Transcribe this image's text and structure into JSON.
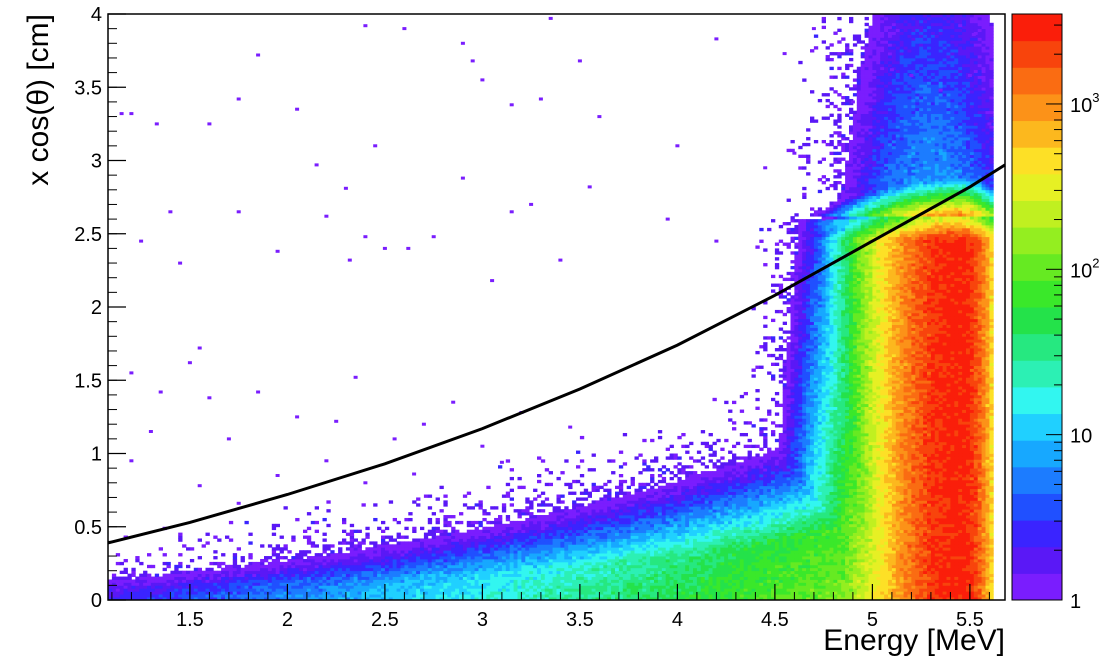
{
  "chart_data": {
    "type": "heatmap",
    "xlabel": "Energy [MeV]",
    "ylabel": "x cos(θ) [cm]",
    "xlim": [
      1.08,
      5.68
    ],
    "ylim": [
      0,
      4
    ],
    "x_ticks": [
      1.5,
      2,
      2.5,
      3,
      3.5,
      4,
      4.5,
      5,
      5.5
    ],
    "x_tick_labels": [
      "1.5",
      "2",
      "2.5",
      "3",
      "3.5",
      "4",
      "4.5",
      "5",
      "5.5"
    ],
    "y_ticks": [
      0,
      0.5,
      1,
      1.5,
      2,
      2.5,
      3,
      3.5,
      4
    ],
    "y_tick_labels": [
      "0",
      "0.5",
      "1",
      "1.5",
      "2",
      "2.5",
      "3",
      "3.5",
      "4"
    ],
    "colorbar": {
      "scale": "log",
      "range": [
        1,
        3500
      ],
      "tick_values": [
        1,
        10,
        100,
        1000
      ],
      "tick_labels": [
        {
          "base": "1",
          "exp": ""
        },
        {
          "base": "10",
          "exp": ""
        },
        {
          "base": "10",
          "exp": "2"
        },
        {
          "base": "10",
          "exp": "3"
        }
      ],
      "colors": [
        "#7a1dfe",
        "#5a18f6",
        "#3a24ff",
        "#2050ff",
        "#1c7cff",
        "#17a8ff",
        "#20d0ff",
        "#32f6f0",
        "#2cf0b4",
        "#26e880",
        "#24e24a",
        "#3ae82a",
        "#66ea22",
        "#94ee20",
        "#c0f020",
        "#e6f024",
        "#fde026",
        "#fcb81e",
        "#fc9218",
        "#fa6c12",
        "#f8440c",
        "#fa1e0a"
      ]
    },
    "cut_line": {
      "x": [
        1.08,
        1.5,
        2.0,
        2.5,
        3.0,
        3.5,
        4.0,
        4.5,
        5.0,
        5.5,
        5.68
      ],
      "y": [
        0.39,
        0.53,
        0.72,
        0.93,
        1.17,
        1.44,
        1.74,
        2.08,
        2.45,
        2.82,
        2.97
      ]
    },
    "density": {
      "band_base_y": 0.05,
      "band_peak_energy": 5.45,
      "band_peak_y_max": 2.62,
      "band_edge_energy": 5.62,
      "peak_counts": 3000
    },
    "outliers": [
      [
        1.15,
        3.32
      ],
      [
        1.2,
        3.32
      ],
      [
        1.33,
        3.25
      ],
      [
        1.6,
        3.25
      ],
      [
        1.75,
        3.42
      ],
      [
        1.85,
        3.72
      ],
      [
        2.4,
        3.92
      ],
      [
        2.6,
        3.9
      ],
      [
        2.9,
        3.8
      ],
      [
        2.95,
        3.68
      ],
      [
        3.0,
        3.55
      ],
      [
        3.15,
        3.38
      ],
      [
        3.3,
        3.42
      ],
      [
        3.35,
        3.97
      ],
      [
        3.6,
        3.3
      ],
      [
        4.2,
        3.83
      ],
      [
        4.55,
        3.73
      ],
      [
        4.7,
        3.9
      ],
      [
        4.9,
        3.4
      ],
      [
        5.1,
        3.62
      ],
      [
        5.2,
        3.58
      ],
      [
        5.35,
        3.48
      ],
      [
        5.45,
        3.92
      ],
      [
        5.5,
        3.58
      ],
      [
        5.52,
        3.86
      ],
      [
        5.6,
        3.25
      ],
      [
        1.45,
        2.3
      ],
      [
        1.55,
        1.72
      ],
      [
        1.75,
        2.65
      ],
      [
        1.95,
        2.38
      ],
      [
        2.15,
        2.97
      ],
      [
        2.3,
        2.81
      ],
      [
        2.32,
        2.32
      ],
      [
        2.4,
        2.48
      ],
      [
        2.5,
        2.4
      ],
      [
        2.62,
        2.4
      ],
      [
        2.75,
        2.48
      ],
      [
        2.9,
        2.88
      ],
      [
        3.05,
        2.18
      ],
      [
        3.15,
        2.65
      ],
      [
        3.25,
        2.7
      ],
      [
        3.4,
        2.32
      ],
      [
        3.55,
        2.82
      ],
      [
        3.95,
        2.6
      ],
      [
        4.2,
        2.45
      ],
      [
        4.45,
        2.95
      ],
      [
        4.6,
        3.05
      ],
      [
        4.75,
        2.6
      ],
      [
        1.2,
        1.55
      ],
      [
        1.35,
        1.42
      ],
      [
        1.5,
        1.62
      ],
      [
        1.6,
        1.38
      ],
      [
        1.85,
        1.42
      ],
      [
        2.05,
        1.25
      ],
      [
        2.25,
        1.22
      ],
      [
        2.35,
        1.52
      ],
      [
        2.55,
        1.1
      ],
      [
        2.7,
        1.2
      ],
      [
        2.85,
        1.35
      ],
      [
        3.0,
        1.05
      ],
      [
        3.2,
        1.28
      ],
      [
        3.45,
        1.18
      ],
      [
        1.2,
        0.95
      ],
      [
        1.55,
        0.78
      ],
      [
        1.75,
        0.66
      ],
      [
        1.95,
        0.85
      ],
      [
        2.2,
        0.95
      ],
      [
        2.4,
        0.8
      ],
      [
        2.65,
        0.86
      ],
      [
        3.1,
        0.94
      ],
      [
        1.3,
        1.15
      ],
      [
        1.7,
        1.1
      ],
      [
        1.4,
        2.65
      ],
      [
        1.25,
        2.45
      ],
      [
        2.2,
        2.62
      ],
      [
        2.05,
        3.35
      ],
      [
        2.45,
        3.1
      ],
      [
        3.5,
        3.68
      ],
      [
        4.0,
        3.1
      ],
      [
        5.05,
        3.75
      ]
    ]
  }
}
